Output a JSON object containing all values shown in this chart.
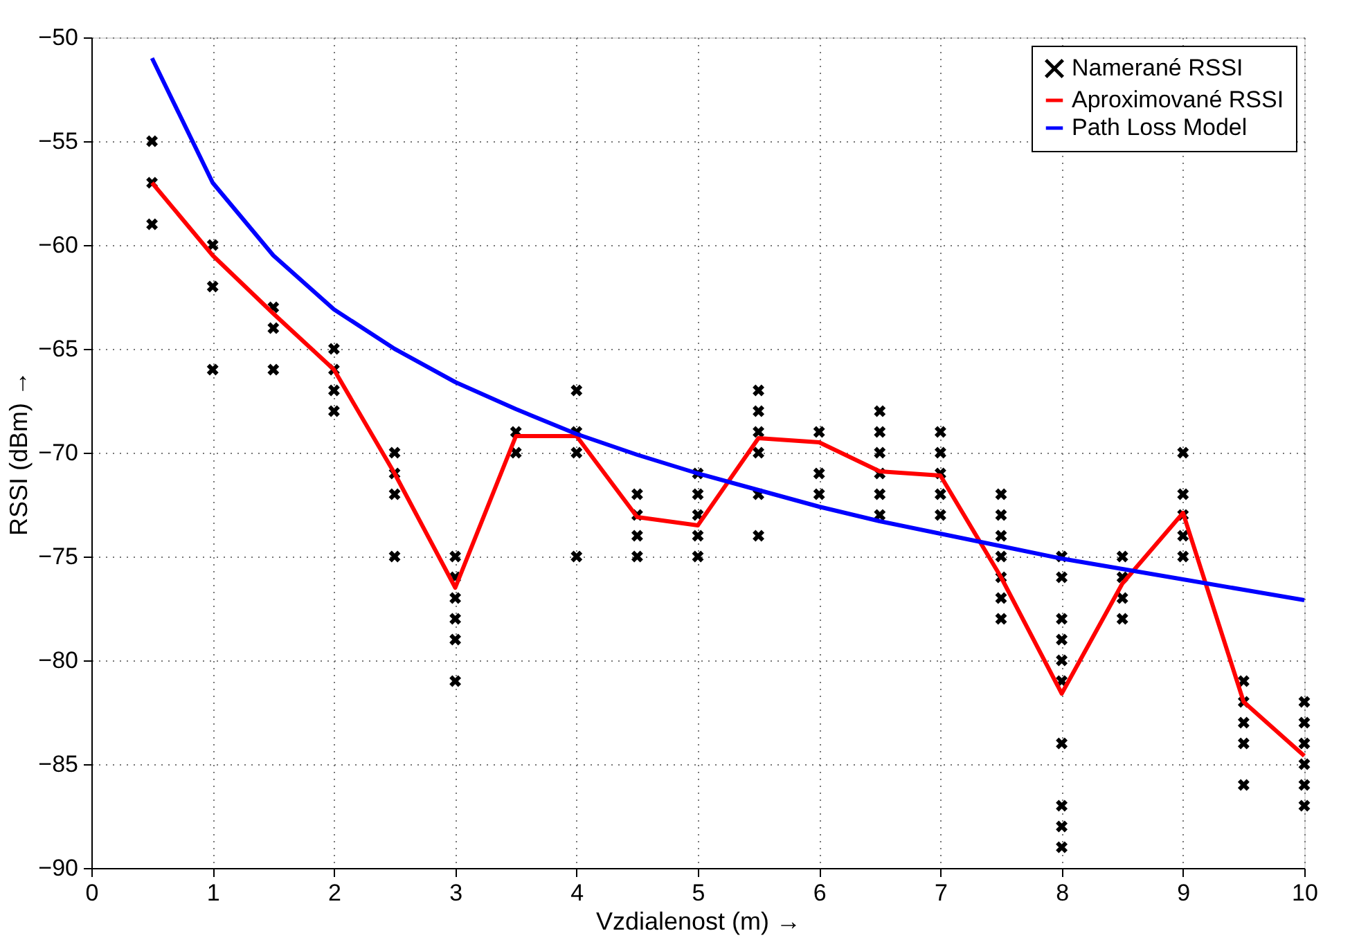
{
  "chart_data": {
    "type": "line",
    "xlabel": "Vzdialenost (m) →",
    "ylabel": "RSSI (dBm) →",
    "xlim": [
      0,
      10
    ],
    "xticks": [
      0,
      1,
      2,
      3,
      4,
      5,
      6,
      7,
      8,
      9,
      10
    ],
    "ylim": [
      -90,
      -50
    ],
    "yticks": [
      -90,
      -85,
      -80,
      -75,
      -70,
      -65,
      -60,
      -55,
      -50
    ],
    "grid": true,
    "legend": "top right",
    "line_style": "solid",
    "series": [
      {
        "name": "Namerané RSSI",
        "type": "scatter",
        "marker": "cross",
        "color": "#000000",
        "x": [
          0.5,
          0.5,
          0.5,
          1,
          1,
          1,
          1.5,
          1.5,
          1.5,
          2,
          2,
          2,
          2,
          2.5,
          2.5,
          2.5,
          2.5,
          3,
          3,
          3,
          3,
          3,
          3,
          3.5,
          3.5,
          4,
          4,
          4,
          4,
          4.5,
          4.5,
          4.5,
          4.5,
          5,
          5,
          5,
          5,
          5,
          5.5,
          5.5,
          5.5,
          5.5,
          5.5,
          5.5,
          6,
          6,
          6,
          6.5,
          6.5,
          6.5,
          6.5,
          6.5,
          6.5,
          7,
          7,
          7,
          7,
          7,
          7.5,
          7.5,
          7.5,
          7.5,
          7.5,
          7.5,
          7.5,
          8,
          8,
          8,
          8,
          8,
          8,
          8,
          8,
          8,
          8,
          8.5,
          8.5,
          8.5,
          8.5,
          9,
          9,
          9,
          9,
          9,
          9.5,
          9.5,
          9.5,
          9.5,
          9.5,
          10,
          10,
          10,
          10,
          10,
          10
        ],
        "values": [
          -55,
          -57,
          -59,
          -60,
          -62,
          -66,
          -63,
          -64,
          -66,
          -65,
          -66,
          -67,
          -68,
          -70,
          -71,
          -72,
          -75,
          -75,
          -76,
          -77,
          -78,
          -79,
          -81,
          -69,
          -70,
          -67,
          -69,
          -70,
          -75,
          -72,
          -73,
          -74,
          -75,
          -71,
          -72,
          -73,
          -74,
          -75,
          -67,
          -68,
          -69,
          -70,
          -72,
          -74,
          -69,
          -71,
          -72,
          -68,
          -69,
          -70,
          -71,
          -72,
          -73,
          -69,
          -70,
          -71,
          -72,
          -73,
          -72,
          -73,
          -74,
          -75,
          -76,
          -77,
          -78,
          -75,
          -76,
          -78,
          -79,
          -80,
          -81,
          -84,
          -87,
          -88,
          -89,
          -75,
          -76,
          -77,
          -78,
          -70,
          -72,
          -73,
          -74,
          -75,
          -81,
          -82,
          -83,
          -84,
          -86,
          -82,
          -83,
          -84,
          -85,
          -86,
          -87
        ]
      },
      {
        "name": "Aproximované RSSI",
        "color": "#ff0000",
        "x": [
          0.5,
          1,
          1.5,
          2,
          2.5,
          3,
          3.5,
          4,
          4.5,
          5,
          5.5,
          6,
          6.5,
          7,
          7.5,
          8,
          8.5,
          9,
          9.5,
          10
        ],
        "values": [
          -57,
          -60.5,
          -63.3,
          -66,
          -71,
          -76.5,
          -69.2,
          -69.2,
          -73.1,
          -73.5,
          -69.3,
          -69.5,
          -70.9,
          -71.1,
          -76,
          -81.6,
          -76.3,
          -72.9,
          -82,
          -84.6
        ]
      },
      {
        "name": "Path Loss Model",
        "color": "#0000ff",
        "x": [
          0.5,
          1,
          1.5,
          2,
          2.5,
          3,
          3.5,
          4,
          4.5,
          5,
          5.5,
          6,
          6.5,
          7,
          7.5,
          8,
          8.5,
          9,
          9.5,
          10
        ],
        "values": [
          -51,
          -57,
          -60.5,
          -63.1,
          -65,
          -66.6,
          -67.9,
          -69.1,
          -70.1,
          -71,
          -71.8,
          -72.6,
          -73.3,
          -73.9,
          -74.5,
          -75.1,
          -75.6,
          -76.1,
          -76.6,
          -77.1
        ]
      }
    ]
  }
}
